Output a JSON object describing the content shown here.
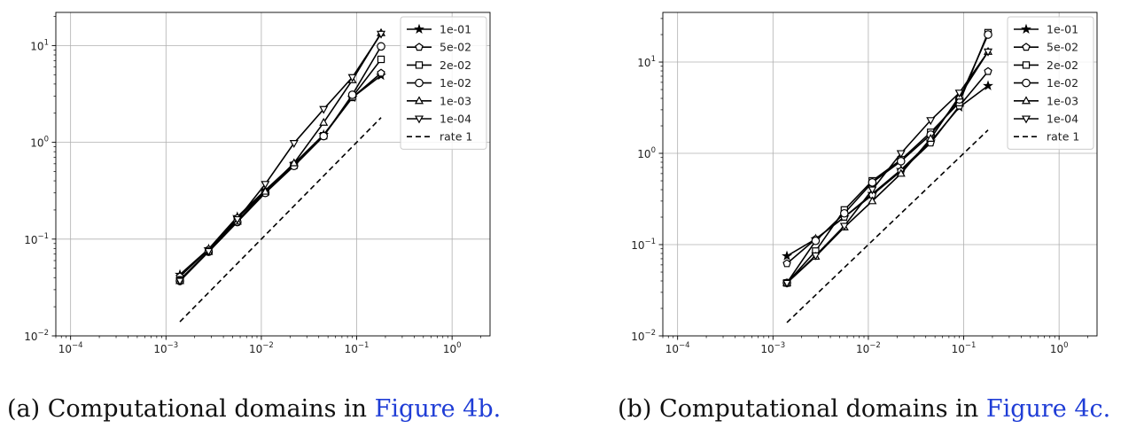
{
  "captions": [
    {
      "label": "(a)",
      "text": "Computational domains in",
      "ref": "Figure 4b."
    },
    {
      "label": "(b)",
      "text": "Computational domains in",
      "ref": "Figure 4c."
    }
  ],
  "chart_data": [
    {
      "type": "line",
      "xscale": "log",
      "yscale": "log",
      "xlim": [
        7e-05,
        2.5
      ],
      "ylim": [
        0.01,
        22
      ],
      "grid": true,
      "legend_position": "top-right",
      "xticks": [
        {
          "value": 0.0001,
          "base": "10",
          "exp": "−4"
        },
        {
          "value": 0.001,
          "base": "10",
          "exp": "−3"
        },
        {
          "value": 0.01,
          "base": "10",
          "exp": "−2"
        },
        {
          "value": 0.1,
          "base": "10",
          "exp": "−1"
        },
        {
          "value": 1,
          "base": "10",
          "exp": "0"
        }
      ],
      "yticks": [
        {
          "value": 0.01,
          "base": "10",
          "exp": "−2"
        },
        {
          "value": 0.1,
          "base": "10",
          "exp": "−1"
        },
        {
          "value": 1,
          "base": "10",
          "exp": "0"
        },
        {
          "value": 10,
          "base": "10",
          "exp": "1"
        }
      ],
      "x": [
        0.0014,
        0.0028,
        0.0056,
        0.011,
        0.022,
        0.045,
        0.09,
        0.18
      ],
      "series": [
        {
          "name": "1e-01",
          "marker": "star",
          "values": [
            0.043,
            0.079,
            0.17,
            0.32,
            0.6,
            1.2,
            2.9,
            4.9
          ]
        },
        {
          "name": "5e-02",
          "marker": "pentagon",
          "values": [
            0.041,
            0.078,
            0.165,
            0.31,
            0.59,
            1.18,
            2.9,
            5.2
          ]
        },
        {
          "name": "2e-02",
          "marker": "square",
          "values": [
            0.038,
            0.075,
            0.155,
            0.305,
            0.58,
            1.17,
            2.95,
            7.2
          ]
        },
        {
          "name": "1e-02",
          "marker": "circle",
          "values": [
            0.037,
            0.074,
            0.15,
            0.3,
            0.57,
            1.16,
            3.1,
            9.8
          ]
        },
        {
          "name": "1e-03",
          "marker": "triangle-up",
          "values": [
            0.037,
            0.074,
            0.152,
            0.31,
            0.61,
            1.6,
            4.4,
            13.5
          ]
        },
        {
          "name": "1e-04",
          "marker": "triangle-down",
          "values": [
            0.037,
            0.075,
            0.16,
            0.37,
            0.98,
            2.2,
            4.7,
            13.2
          ]
        },
        {
          "name": "rate 1",
          "style": "dashed",
          "x": [
            0.0014,
            0.18
          ],
          "values": [
            0.014,
            1.8
          ]
        }
      ]
    },
    {
      "type": "line",
      "xscale": "log",
      "yscale": "log",
      "xlim": [
        7e-05,
        2.5
      ],
      "ylim": [
        0.01,
        35
      ],
      "grid": true,
      "legend_position": "top-right",
      "xticks": [
        {
          "value": 0.0001,
          "base": "10",
          "exp": "−4"
        },
        {
          "value": 0.001,
          "base": "10",
          "exp": "−3"
        },
        {
          "value": 0.01,
          "base": "10",
          "exp": "−2"
        },
        {
          "value": 0.1,
          "base": "10",
          "exp": "−1"
        },
        {
          "value": 1,
          "base": "10",
          "exp": "0"
        }
      ],
      "yticks": [
        {
          "value": 0.01,
          "base": "10",
          "exp": "−2"
        },
        {
          "value": 0.1,
          "base": "10",
          "exp": "−1"
        },
        {
          "value": 1,
          "base": "10",
          "exp": "0"
        },
        {
          "value": 10,
          "base": "10",
          "exp": "1"
        }
      ],
      "x": [
        0.0014,
        0.0028,
        0.0056,
        0.011,
        0.022,
        0.045,
        0.09,
        0.18
      ],
      "series": [
        {
          "name": "1e-01",
          "marker": "star",
          "values": [
            0.075,
            0.115,
            0.2,
            0.36,
            0.66,
            1.35,
            3.2,
            5.5
          ]
        },
        {
          "name": "5e-02",
          "marker": "pentagon",
          "values": [
            0.062,
            0.115,
            0.2,
            0.35,
            0.64,
            1.3,
            3.3,
            7.9
          ]
        },
        {
          "name": "2e-02",
          "marker": "square",
          "values": [
            0.038,
            0.085,
            0.24,
            0.5,
            0.85,
            1.7,
            3.6,
            21
          ]
        },
        {
          "name": "1e-02",
          "marker": "circle",
          "values": [
            0.038,
            0.11,
            0.22,
            0.48,
            0.82,
            1.6,
            3.9,
            20
          ]
        },
        {
          "name": "1e-03",
          "marker": "triangle-up",
          "values": [
            0.038,
            0.074,
            0.155,
            0.3,
            0.6,
            1.45,
            4.2,
            13
          ]
        },
        {
          "name": "1e-04",
          "marker": "triangle-down",
          "values": [
            0.038,
            0.076,
            0.16,
            0.4,
            1.0,
            2.3,
            4.6,
            13
          ]
        },
        {
          "name": "rate 1",
          "style": "dashed",
          "x": [
            0.0014,
            0.18
          ],
          "values": [
            0.014,
            1.8
          ]
        }
      ]
    }
  ]
}
